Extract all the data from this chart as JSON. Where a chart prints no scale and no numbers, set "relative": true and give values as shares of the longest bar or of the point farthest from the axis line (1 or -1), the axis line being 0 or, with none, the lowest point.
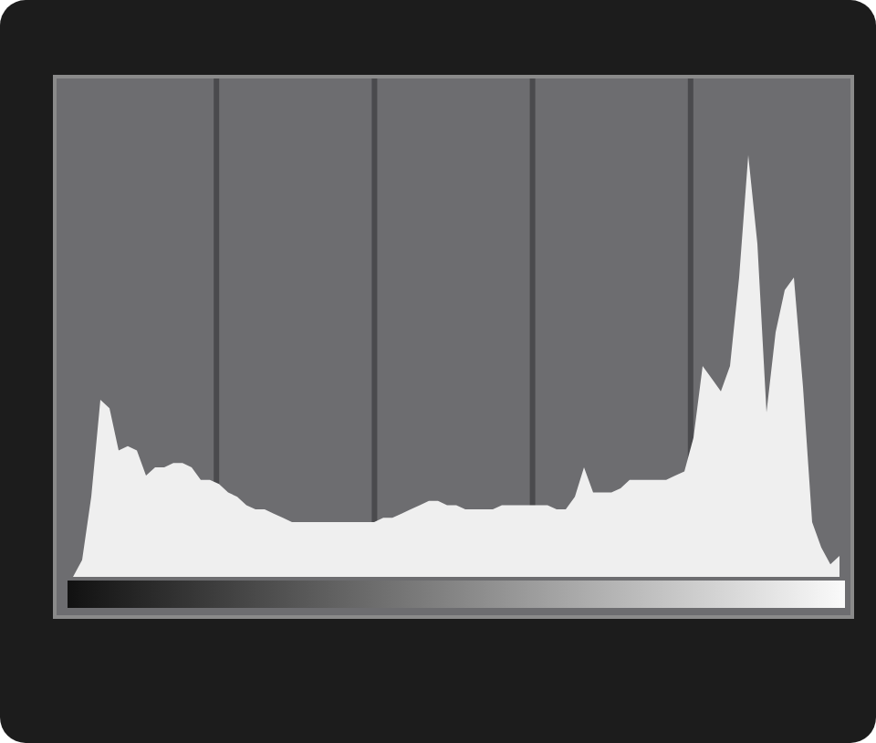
{
  "chart_data": {
    "type": "area",
    "relative": true,
    "grid": "x",
    "color": "#efefef",
    "categories": [
      null,
      null,
      null,
      null,
      null,
      null,
      null,
      null,
      null,
      null,
      null,
      null,
      null,
      null,
      null,
      null,
      null,
      null,
      null,
      null,
      null,
      null,
      null,
      null,
      null,
      null,
      null,
      null,
      null,
      null,
      null,
      null,
      null,
      null,
      null,
      null,
      null,
      null,
      null,
      null,
      null,
      null,
      null,
      null,
      null,
      null,
      null,
      null,
      null,
      null,
      null,
      null,
      null,
      null,
      null,
      null,
      null,
      null,
      null,
      null,
      null,
      null,
      null,
      null,
      null,
      null,
      null,
      null,
      null,
      null,
      null,
      null,
      null,
      null,
      null,
      null,
      null,
      null,
      null,
      null,
      null,
      null,
      null,
      null,
      null
    ],
    "values": [
      0,
      0.04,
      0.19,
      0.42,
      0.4,
      0.3,
      0.31,
      0.3,
      0.24,
      0.26,
      0.26,
      0.27,
      0.27,
      0.26,
      0.23,
      0.23,
      0.22,
      0.2,
      0.19,
      0.17,
      0.16,
      0.16,
      0.15,
      0.14,
      0.13,
      0.13,
      0.13,
      0.13,
      0.13,
      0.13,
      0.13,
      0.13,
      0.13,
      0.13,
      0.14,
      0.14,
      0.15,
      0.16,
      0.17,
      0.18,
      0.18,
      0.17,
      0.17,
      0.16,
      0.16,
      0.16,
      0.16,
      0.17,
      0.17,
      0.17,
      0.17,
      0.17,
      0.17,
      0.16,
      0.16,
      0.19,
      0.26,
      0.2,
      0.2,
      0.2,
      0.21,
      0.23,
      0.23,
      0.23,
      0.23,
      0.23,
      0.24,
      0.25,
      0.33,
      0.5,
      0.47,
      0.44,
      0.5,
      0.71,
      1,
      0.79,
      0.39,
      0.58,
      0.68,
      0.71,
      0.45,
      0.13,
      0.07,
      0.03,
      0.05
    ]
  }
}
